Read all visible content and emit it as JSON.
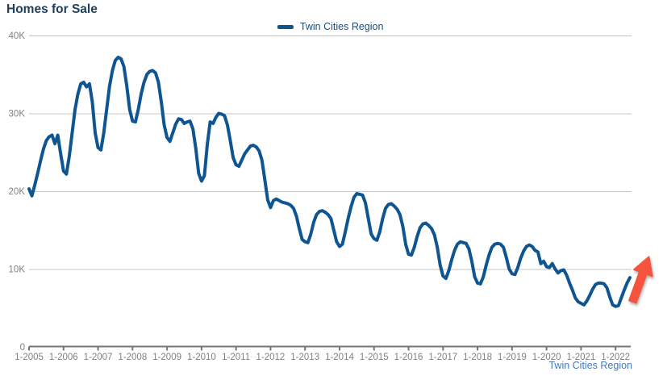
{
  "title": "Homes for Sale",
  "legend": {
    "label": "Twin Cities Region"
  },
  "footer": {
    "label": "Twin Cities Region"
  },
  "colors": {
    "line": "#0f5591",
    "title_text": "#1f3d5c",
    "legend_text": "#1d4e7a",
    "axis_text": "#808080",
    "gridline": "#c4c4c4",
    "axis_line": "#757575",
    "footer_text": "#4678b8",
    "arrow": "#f5533c"
  },
  "chart_data": {
    "type": "line",
    "title": "Homes for Sale",
    "xlabel": "",
    "ylabel": "",
    "ylim": [
      0,
      40000
    ],
    "grid": "horizontal",
    "legend_position": "top-center",
    "x_interval": "monthly",
    "x_start": "2005-01",
    "x_end": "2022-06",
    "x_tick_labels": [
      "1-2005",
      "1-2006",
      "1-2007",
      "1-2008",
      "1-2009",
      "1-2010",
      "1-2011",
      "1-2012",
      "1-2013",
      "1-2014",
      "1-2015",
      "1-2016",
      "1-2017",
      "1-2018",
      "1-2019",
      "1-2020",
      "1-2021",
      "1-2022"
    ],
    "y_ticks": {
      "values": [
        0,
        10000,
        20000,
        30000,
        40000
      ],
      "labels": [
        "0",
        "10K",
        "20K",
        "30K",
        "40K"
      ]
    },
    "series": [
      {
        "name": "Twin Cities Region",
        "color": "#0f5591",
        "values": [
          20300,
          19400,
          20800,
          22300,
          23900,
          25400,
          26500,
          27000,
          27200,
          26100,
          27200,
          24800,
          22600,
          22200,
          24500,
          27500,
          30500,
          32500,
          33800,
          34000,
          33400,
          33800,
          31500,
          27500,
          25600,
          25300,
          27500,
          30500,
          33500,
          35500,
          36800,
          37200,
          37000,
          36000,
          33500,
          30500,
          29000,
          28900,
          30500,
          32500,
          34000,
          35000,
          35400,
          35500,
          35200,
          34000,
          31500,
          28500,
          26900,
          26400,
          27500,
          28600,
          29300,
          29200,
          28700,
          28900,
          29000,
          28000,
          25500,
          22300,
          21300,
          22000,
          26000,
          28900,
          28700,
          29500,
          30000,
          29900,
          29700,
          28500,
          26500,
          24300,
          23400,
          23200,
          24000,
          24800,
          25300,
          25800,
          25900,
          25700,
          25200,
          24000,
          21500,
          18900,
          17900,
          18800,
          19000,
          18800,
          18600,
          18500,
          18400,
          18200,
          17800,
          16800,
          15200,
          13800,
          13500,
          13400,
          14500,
          16000,
          17000,
          17400,
          17500,
          17300,
          17000,
          16500,
          15000,
          13500,
          12900,
          13200,
          14800,
          16500,
          18000,
          19200,
          19700,
          19600,
          19500,
          18500,
          16500,
          14500,
          13900,
          13700,
          14800,
          16500,
          17800,
          18300,
          18400,
          18100,
          17700,
          17000,
          15500,
          13200,
          11900,
          11800,
          12800,
          14200,
          15300,
          15800,
          15900,
          15600,
          15200,
          14400,
          12800,
          10500,
          9100,
          8800,
          9800,
          11200,
          12400,
          13200,
          13500,
          13400,
          13300,
          12600,
          11000,
          9000,
          8200,
          8100,
          9000,
          10500,
          11800,
          12800,
          13200,
          13300,
          13200,
          12800,
          11500,
          10000,
          9400,
          9300,
          10200,
          11400,
          12300,
          12900,
          13100,
          12900,
          12400,
          12200,
          10700,
          11000,
          10300,
          10200,
          10700,
          10000,
          9500,
          9800,
          9900,
          9200,
          8200,
          7300,
          6300,
          5800,
          5600,
          5400,
          5900,
          6600,
          7400,
          8000,
          8200,
          8200,
          8100,
          7600,
          6400,
          5400,
          5200,
          5300,
          6300,
          7300,
          8200,
          8900
        ]
      }
    ],
    "annotations": [
      {
        "type": "arrow",
        "direction": "up-right",
        "color": "#f5533c",
        "position": "end-of-series"
      }
    ]
  }
}
